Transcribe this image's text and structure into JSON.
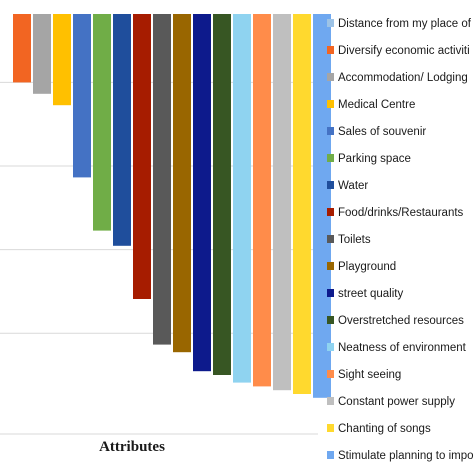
{
  "chart_data": {
    "type": "bar",
    "orientation": "downward",
    "xlabel": "Attributes",
    "ylabel": "",
    "ylim": [
      0,
      1
    ],
    "grid": true,
    "legend_position": "right",
    "categories": [
      "Distance from my place of",
      "Diversify economic activiti",
      "Accommodation/ Lodging",
      "Medical Centre",
      "Sales of souvenir",
      "Parking space",
      "Water",
      "Food/drinks/Restaurants",
      "Toilets",
      "Playground",
      "street quality",
      "Overstretched resources",
      "Neatness of environment",
      "Sight seeing",
      "Constant power supply",
      "Chanting of songs",
      "Stimulate planning to impo"
    ],
    "colors": [
      "#9dc3e6",
      "#f26522",
      "#a5a5a5",
      "#ffc000",
      "#4472c4",
      "#70ad47",
      "#1f4e9c",
      "#a61c00",
      "#595959",
      "#996600",
      "#0d1a8c",
      "#375623",
      "#8fd3f0",
      "#ff8c4a",
      "#bfbfbf",
      "#ffd92e",
      "#6fa8f0"
    ],
    "values": [
      0.0,
      0.18,
      0.21,
      0.24,
      0.43,
      0.57,
      0.61,
      0.75,
      0.87,
      0.89,
      0.94,
      0.95,
      0.97,
      0.98,
      0.99,
      1.0,
      1.01
    ]
  }
}
